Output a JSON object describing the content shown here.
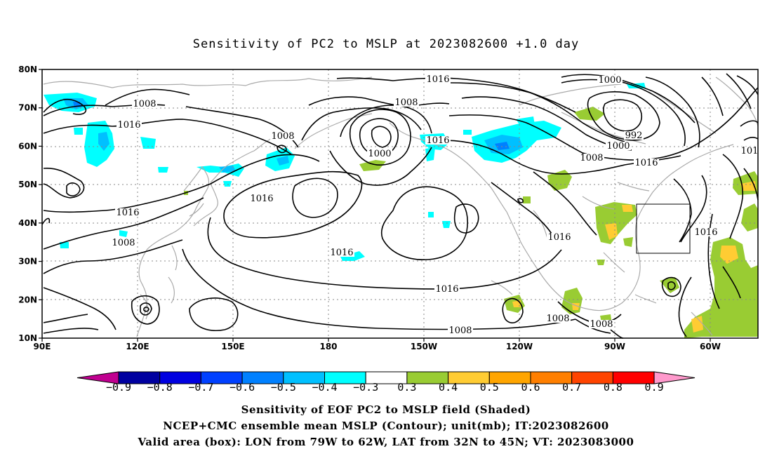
{
  "title": "Sensitivity of PC2 to MSLP at 2023082600 +1.0 day",
  "lat_ticks": [
    "80N",
    "70N",
    "60N",
    "50N",
    "40N",
    "30N",
    "20N",
    "10N"
  ],
  "lon_ticks": [
    "90E",
    "120E",
    "150E",
    "180",
    "150W",
    "120W",
    "90W",
    "60W"
  ],
  "contour_labels": [
    {
      "text": "1016",
      "where": "north-pacific-top"
    },
    {
      "text": "1000",
      "where": "north-atlantic-top"
    },
    {
      "text": "1008",
      "where": "siberia-west"
    },
    {
      "text": "1016",
      "where": "siberia-central"
    },
    {
      "text": "1008",
      "where": "bering-north"
    },
    {
      "text": "1008",
      "where": "okhotsk"
    },
    {
      "text": "1000",
      "where": "bering-low"
    },
    {
      "text": "1016",
      "where": "gulf-of-alaska"
    },
    {
      "text": "992",
      "where": "labrador-low"
    },
    {
      "text": "1000",
      "where": "labrador-ring"
    },
    {
      "text": "1008",
      "where": "hudson"
    },
    {
      "text": "1016",
      "where": "canada-east"
    },
    {
      "text": "1016",
      "where": "pacific-high-west"
    },
    {
      "text": "1016",
      "where": "china"
    },
    {
      "text": "1008",
      "where": "south-china"
    },
    {
      "text": "1016",
      "where": "central-pacific"
    },
    {
      "text": "1016",
      "where": "tropical-pacific"
    },
    {
      "text": "1008",
      "where": "east-pacific"
    },
    {
      "text": "1016",
      "where": "california"
    },
    {
      "text": "1016",
      "where": "atlantic"
    },
    {
      "text": "1008",
      "where": "mexico"
    },
    {
      "text": "1008",
      "where": "caribbean"
    },
    {
      "text": "101",
      "where": "right-edge"
    }
  ],
  "colorbar": {
    "ticks": [
      "-0.9",
      "-0.8",
      "-0.7",
      "-0.6",
      "-0.5",
      "-0.4",
      "-0.3",
      "0.3",
      "0.4",
      "0.5",
      "0.6",
      "0.7",
      "0.8",
      "0.9"
    ],
    "colors": [
      "#0000a0",
      "#0000e0",
      "#0040ff",
      "#0080ff",
      "#00c0ff",
      "#00ffff",
      "#ffffff",
      "#99cc33",
      "#ffcc33",
      "#ffa500",
      "#ff7f00",
      "#ff4400",
      "#ff0000"
    ],
    "low_end_color": "#c00090",
    "high_end_color": "#ff99cc"
  },
  "captions": [
    "Sensitivity of EOF PC2 to MSLP field (Shaded)",
    "NCEP+CMC ensemble mean MSLP (Contour); unit(mb); IT:2023082600",
    "Valid area (box): LON from 79W to 62W, LAT from 32N to 45N; VT: 2023083000"
  ],
  "map_colors": {
    "coast": "#aaaaaa",
    "contour": "#000000",
    "grid": "#888888",
    "frame": "#000000"
  }
}
